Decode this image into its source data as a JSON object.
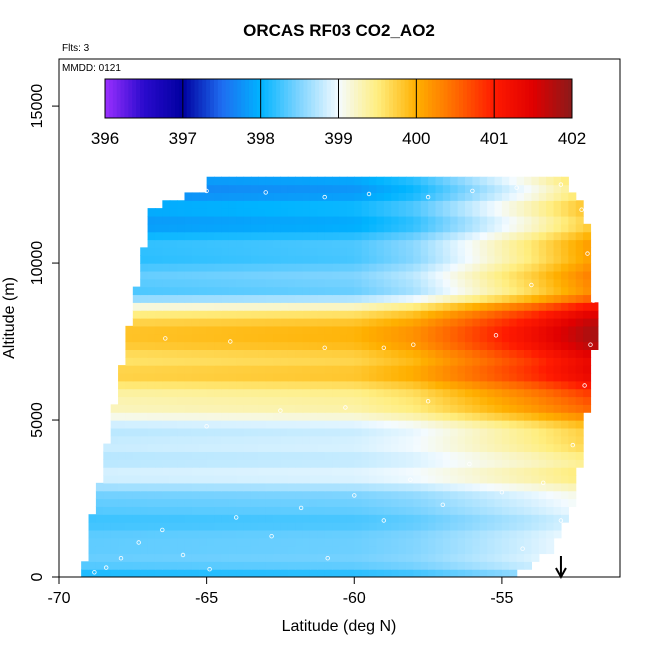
{
  "chart_data": {
    "type": "heatmap",
    "title": "ORCAS RF03 CO2_AO2",
    "annotation_flights": "Flts: 3",
    "annotation_date": "MMDD: 0121",
    "xlabel": "Latitude (deg N)",
    "ylabel": "Altitude (m)",
    "xlim": [
      -70,
      -51
    ],
    "ylim": [
      0,
      16500
    ],
    "x_ticks": [
      -70,
      -65,
      -60,
      -55
    ],
    "y_ticks": [
      0,
      5000,
      10000,
      15000
    ],
    "grid": false,
    "colorbar": {
      "min": 396,
      "max": 402,
      "ticks": [
        396,
        397,
        398,
        399,
        400,
        401,
        402
      ],
      "placement": "top-inside",
      "stops": [
        {
          "value": 396.0,
          "color": "#9b30ff"
        },
        {
          "value": 396.5,
          "color": "#2a0acd"
        },
        {
          "value": 397.0,
          "color": "#0000a0"
        },
        {
          "value": 397.5,
          "color": "#1e6cf0"
        },
        {
          "value": 398.0,
          "color": "#00b4ff"
        },
        {
          "value": 398.5,
          "color": "#7fd4ff"
        },
        {
          "value": 399.0,
          "color": "#f4fbff"
        },
        {
          "value": 399.5,
          "color": "#ffee80"
        },
        {
          "value": 400.0,
          "color": "#ffb000"
        },
        {
          "value": 400.5,
          "color": "#ff6a00"
        },
        {
          "value": 401.0,
          "color": "#ff1a00"
        },
        {
          "value": 401.5,
          "color": "#e00000"
        },
        {
          "value": 402.0,
          "color": "#8b1a1a"
        }
      ]
    },
    "field": {
      "domain_edges": [
        {
          "alt": 0,
          "lat_min": -69.2,
          "lat_max": -54.6
        },
        {
          "alt": 1000,
          "lat_min": -69.0,
          "lat_max": -53.2
        },
        {
          "alt": 2000,
          "lat_min": -68.9,
          "lat_max": -52.7
        },
        {
          "alt": 4000,
          "lat_min": -68.4,
          "lat_max": -52.3
        },
        {
          "alt": 6000,
          "lat_min": -68.0,
          "lat_max": -52.0
        },
        {
          "alt": 8000,
          "lat_min": -67.6,
          "lat_max": -51.8
        },
        {
          "alt": 10000,
          "lat_min": -67.2,
          "lat_max": -52.0
        },
        {
          "alt": 11800,
          "lat_min": -66.9,
          "lat_max": -52.2
        },
        {
          "alt": 12300,
          "lat_min": -65.0,
          "lat_max": -52.8
        }
      ],
      "altitude_profile": [
        {
          "alt": 0,
          "value": 397.9
        },
        {
          "alt": 500,
          "value": 398.4
        },
        {
          "alt": 1000,
          "value": 398.2
        },
        {
          "alt": 1500,
          "value": 398.5
        },
        {
          "alt": 2000,
          "value": 398.3
        },
        {
          "alt": 2500,
          "value": 398.4
        },
        {
          "alt": 3000,
          "value": 398.6
        },
        {
          "alt": 3500,
          "value": 398.8
        },
        {
          "alt": 4000,
          "value": 398.9
        },
        {
          "alt": 4500,
          "value": 398.8
        },
        {
          "alt": 5000,
          "value": 398.9
        },
        {
          "alt": 5500,
          "value": 399.1
        },
        {
          "alt": 6000,
          "value": 399.5
        },
        {
          "alt": 6500,
          "value": 399.8
        },
        {
          "alt": 7000,
          "value": 399.7
        },
        {
          "alt": 7500,
          "value": 399.6
        },
        {
          "alt": 8000,
          "value": 399.8
        },
        {
          "alt": 8500,
          "value": 399.3
        },
        {
          "alt": 9000,
          "value": 398.5
        },
        {
          "alt": 9500,
          "value": 398.3
        },
        {
          "alt": 10000,
          "value": 398.1
        },
        {
          "alt": 11000,
          "value": 398.0
        },
        {
          "alt": 11800,
          "value": 397.9
        },
        {
          "alt": 12300,
          "value": 397.6
        }
      ],
      "northern_enhancement": [
        {
          "lat": -70,
          "delta": 0.0
        },
        {
          "lat": -60,
          "delta": 0.15
        },
        {
          "lat": -58,
          "delta": 0.4
        },
        {
          "lat": -56,
          "delta": 0.9
        },
        {
          "lat": -54,
          "delta": 1.4
        },
        {
          "lat": -52,
          "delta": 2.0
        }
      ]
    },
    "observations_note": "white open circles mark sampled points",
    "sample_points": [
      [
        -68.8,
        150
      ],
      [
        -68.4,
        300
      ],
      [
        -67.9,
        600
      ],
      [
        -67.3,
        1100
      ],
      [
        -66.5,
        1500
      ],
      [
        -65.8,
        700
      ],
      [
        -64.9,
        250
      ],
      [
        -64.0,
        1900
      ],
      [
        -62.8,
        1300
      ],
      [
        -61.8,
        2200
      ],
      [
        -60.9,
        600
      ],
      [
        -60.0,
        2600
      ],
      [
        -59.0,
        1800
      ],
      [
        -58.1,
        3100
      ],
      [
        -57.0,
        2300
      ],
      [
        -56.1,
        3600
      ],
      [
        -55.0,
        2700
      ],
      [
        -54.3,
        900
      ],
      [
        -53.6,
        3000
      ],
      [
        -53.0,
        1800
      ],
      [
        -52.6,
        4200
      ],
      [
        -52.2,
        6100
      ],
      [
        -52.0,
        7400
      ],
      [
        -51.9,
        8800
      ],
      [
        -52.1,
        10300
      ],
      [
        -52.3,
        11700
      ],
      [
        -53.0,
        12500
      ],
      [
        -54.5,
        12400
      ],
      [
        -56.0,
        12300
      ],
      [
        -57.5,
        12100
      ],
      [
        -59.5,
        12200
      ],
      [
        -61.0,
        12100
      ],
      [
        -63.0,
        12250
      ],
      [
        -65.0,
        12300
      ],
      [
        -66.0,
        12150
      ],
      [
        -67.2,
        11800
      ],
      [
        -67.5,
        10000
      ],
      [
        -67.9,
        8400
      ],
      [
        -68.1,
        7200
      ],
      [
        -66.4,
        7600
      ],
      [
        -64.2,
        7500
      ],
      [
        -61.0,
        7300
      ],
      [
        -59.0,
        7300
      ],
      [
        -58.0,
        7400
      ],
      [
        -62.5,
        5300
      ],
      [
        -65.0,
        4800
      ],
      [
        -60.3,
        5400
      ],
      [
        -57.5,
        5600
      ],
      [
        -55.2,
        7700
      ],
      [
        -54.0,
        9300
      ]
    ],
    "marker": {
      "type": "arrow-down",
      "lat": -53.0
    }
  }
}
